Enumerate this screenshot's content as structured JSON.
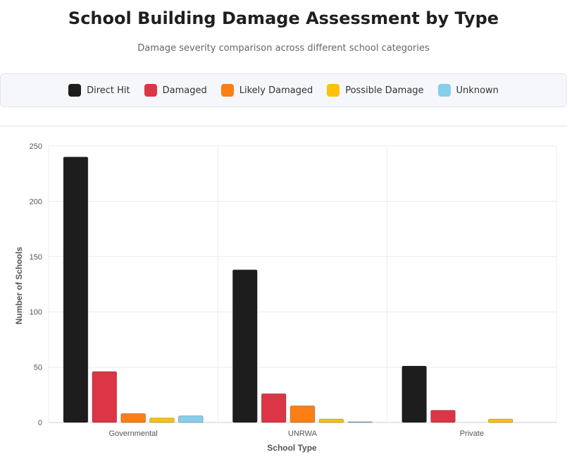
{
  "header": {
    "title": "School Building Damage Assessment by Type",
    "subtitle": "Damage severity comparison across different school categories"
  },
  "legend": [
    {
      "label": "Direct Hit",
      "color": "#1d1d1d"
    },
    {
      "label": "Damaged",
      "color": "#dc3545"
    },
    {
      "label": "Likely Damaged",
      "color": "#fd7e14"
    },
    {
      "label": "Possible Damage",
      "color": "#ffc107"
    },
    {
      "label": "Unknown",
      "color": "#87ceeb"
    }
  ],
  "chart_data": {
    "type": "bar",
    "categories": [
      "Governmental",
      "UNRWA",
      "Private"
    ],
    "series": [
      {
        "name": "Direct Hit",
        "color": "#1d1d1d",
        "values": [
          240,
          138,
          51
        ]
      },
      {
        "name": "Damaged",
        "color": "#dc3545",
        "values": [
          46,
          26,
          11
        ]
      },
      {
        "name": "Likely Damaged",
        "color": "#fd7e14",
        "values": [
          8,
          15,
          0
        ]
      },
      {
        "name": "Possible Damage",
        "color": "#ffc107",
        "values": [
          4,
          3,
          3
        ]
      },
      {
        "name": "Unknown",
        "color": "#87ceeb",
        "values": [
          6,
          0.5,
          0
        ]
      }
    ],
    "xlabel": "School Type",
    "ylabel": "Number of Schools",
    "ylim": [
      0,
      250
    ],
    "yticks": [
      0,
      50,
      100,
      150,
      200,
      250
    ],
    "grid": true,
    "legend_position": "top"
  }
}
